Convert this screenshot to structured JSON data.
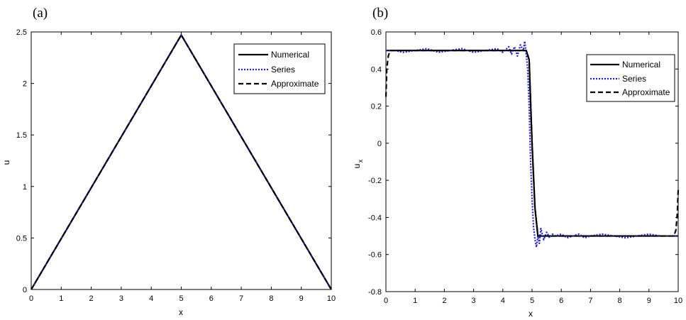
{
  "chart_data": [
    {
      "panel_label": "(a)",
      "type": "line",
      "xlabel": "x",
      "ylabel": "u",
      "ylabel_sub": "",
      "xlim": [
        0,
        10
      ],
      "ylim": [
        0,
        2.5
      ],
      "xticks": [
        0,
        1,
        2,
        3,
        4,
        5,
        6,
        7,
        8,
        9,
        10
      ],
      "yticks": [
        0,
        0.5,
        1,
        1.5,
        2,
        2.5
      ],
      "ytick_labels": [
        "0",
        "0.5",
        "1",
        "1.5",
        "2",
        "2.5"
      ],
      "legend": {
        "position": "top-right",
        "entries": [
          "Numerical",
          "Series",
          "Approximate"
        ]
      },
      "series": [
        {
          "name": "Numerical",
          "style": "solid",
          "color": "#000000",
          "x": [
            0,
            5,
            10
          ],
          "y": [
            0,
            2.47,
            0
          ]
        },
        {
          "name": "Series",
          "style": "dotted",
          "color": "#1f1fd0",
          "x": [
            0,
            5,
            10
          ],
          "y": [
            0,
            2.47,
            0
          ]
        },
        {
          "name": "Approximate",
          "style": "dashed",
          "color": "#000000",
          "x": [
            0,
            5,
            10
          ],
          "y": [
            0,
            2.47,
            0
          ]
        }
      ]
    },
    {
      "panel_label": "(b)",
      "type": "line",
      "xlabel": "x",
      "ylabel": "u",
      "ylabel_sub": "x",
      "xlim": [
        0,
        10
      ],
      "ylim": [
        -0.8,
        0.6
      ],
      "xticks": [
        0,
        1,
        2,
        3,
        4,
        5,
        6,
        7,
        8,
        9,
        10
      ],
      "yticks": [
        -0.8,
        -0.6,
        -0.4,
        -0.2,
        0,
        0.2,
        0.4,
        0.6
      ],
      "ytick_labels": [
        "-0.8",
        "-0.6",
        "-0.4",
        "-0.2",
        "0",
        "0.2",
        "0.4",
        "0.6"
      ],
      "legend": {
        "position": "top-right",
        "entries": [
          "Numerical",
          "Series",
          "Approximate"
        ]
      },
      "series": [
        {
          "name": "Numerical",
          "style": "solid",
          "color": "#000000",
          "x": [
            0,
            4.8,
            4.9,
            5.0,
            5.1,
            5.2,
            10
          ],
          "y": [
            0.5,
            0.5,
            0.45,
            0.0,
            -0.35,
            -0.5,
            -0.5
          ]
        },
        {
          "name": "Series",
          "style": "dotted",
          "color": "#1f1fd0",
          "x": [
            0,
            0.1,
            0.3,
            0.6,
            1.0,
            1.4,
            1.8,
            2.2,
            2.6,
            3.0,
            3.4,
            3.8,
            4.0,
            4.2,
            4.3,
            4.4,
            4.5,
            4.6,
            4.7,
            4.75,
            4.8,
            4.85,
            4.9,
            4.95,
            5.0,
            5.05,
            5.1,
            5.15,
            5.2,
            5.25,
            5.3,
            5.4,
            5.5,
            5.6,
            5.7,
            5.8,
            6.0,
            6.2,
            6.4,
            6.6,
            6.8,
            7.0,
            7.4,
            7.8,
            8.2,
            8.6,
            9.0,
            9.4,
            9.8,
            10
          ],
          "y": [
            0.5,
            0.5,
            0.5,
            0.49,
            0.5,
            0.51,
            0.49,
            0.5,
            0.51,
            0.49,
            0.5,
            0.51,
            0.49,
            0.52,
            0.48,
            0.52,
            0.47,
            0.53,
            0.5,
            0.55,
            0.48,
            0.4,
            0.2,
            -0.1,
            -0.3,
            -0.45,
            -0.52,
            -0.56,
            -0.5,
            -0.54,
            -0.46,
            -0.52,
            -0.48,
            -0.51,
            -0.49,
            -0.5,
            -0.49,
            -0.51,
            -0.5,
            -0.49,
            -0.51,
            -0.5,
            -0.49,
            -0.5,
            -0.51,
            -0.5,
            -0.49,
            -0.5,
            -0.5,
            -0.5
          ]
        },
        {
          "name": "Approximate",
          "style": "dashed",
          "color": "#000000",
          "x": [
            0,
            0.03,
            0.08,
            0.15,
            0.3,
            4.8,
            4.9,
            5.0,
            5.1,
            5.2,
            9.7,
            9.85,
            9.92,
            9.97,
            10
          ],
          "y": [
            0.25,
            0.4,
            0.47,
            0.5,
            0.5,
            0.5,
            0.45,
            0.0,
            -0.35,
            -0.5,
            -0.5,
            -0.5,
            -0.47,
            -0.38,
            -0.25
          ]
        }
      ]
    }
  ]
}
